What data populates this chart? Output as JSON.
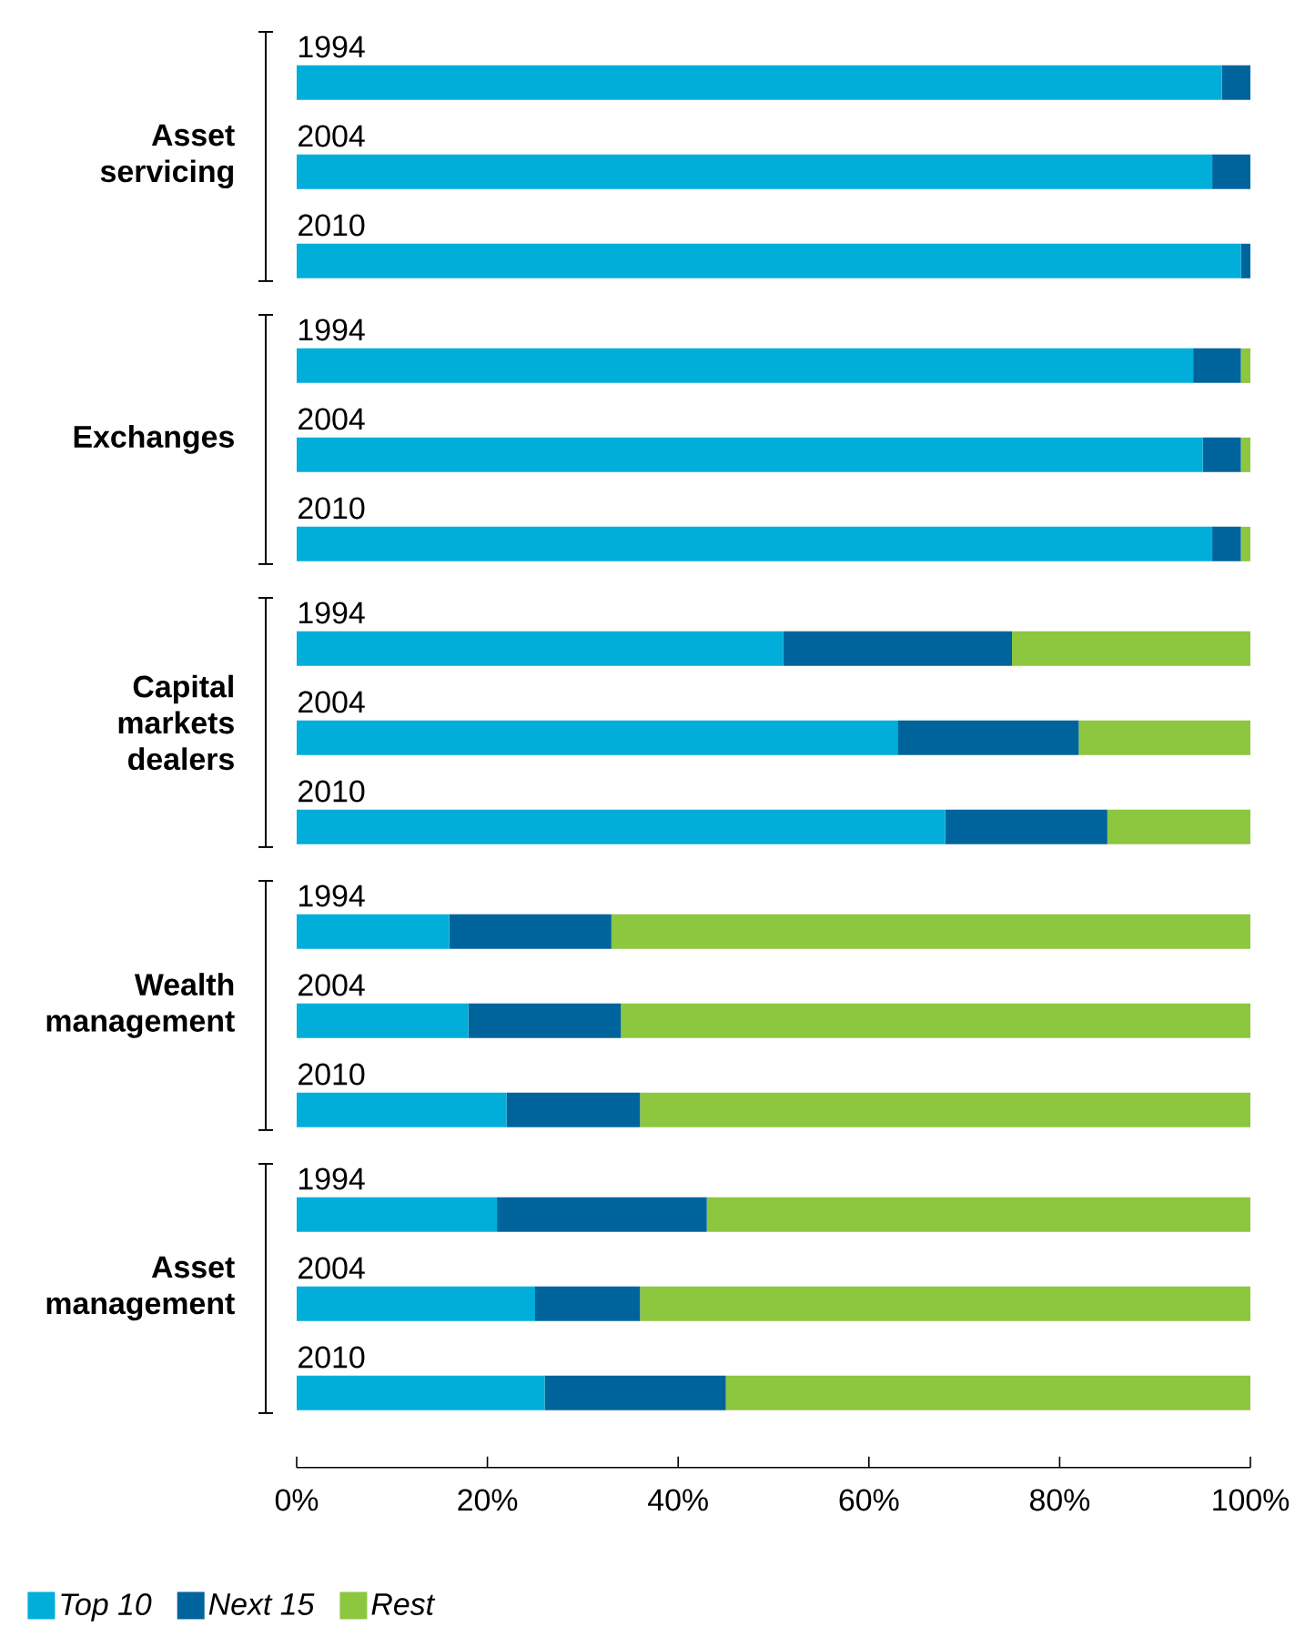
{
  "chart_data": [
    {
      "type": "bar",
      "orientation": "horizontal",
      "stacked": true,
      "ylabel": "Asset servicing",
      "categories": [
        "1994",
        "2004",
        "2010"
      ],
      "xlim": [
        0,
        100
      ],
      "tick_labels": "y",
      "series": [
        {
          "color": "#00aed9",
          "values": [
            97,
            96,
            99
          ]
        },
        {
          "color": "#00649c",
          "values": [
            3,
            4,
            1
          ]
        },
        {
          "color": "#8dc63f",
          "values": [
            0,
            0,
            0
          ]
        }
      ]
    },
    {
      "type": "bar",
      "orientation": "horizontal",
      "stacked": true,
      "ylabel": "Exchanges",
      "categories": [
        "1994",
        "2004",
        "2010"
      ],
      "xlim": [
        0,
        100
      ],
      "tick_labels": "y",
      "series": [
        {
          "color": "#00aed9",
          "values": [
            94,
            95,
            96
          ]
        },
        {
          "color": "#00649c",
          "values": [
            5,
            4,
            3
          ]
        },
        {
          "color": "#8dc63f",
          "values": [
            1,
            1,
            1
          ]
        }
      ]
    },
    {
      "type": "bar",
      "orientation": "horizontal",
      "stacked": true,
      "ylabel": "Capital markets dealers",
      "categories": [
        "1994",
        "2004",
        "2010"
      ],
      "xlim": [
        0,
        100
      ],
      "tick_labels": "y",
      "series": [
        {
          "color": "#00aed9",
          "values": [
            51,
            63,
            68
          ]
        },
        {
          "color": "#00649c",
          "values": [
            24,
            19,
            17
          ]
        },
        {
          "color": "#8dc63f",
          "values": [
            25,
            18,
            15
          ]
        }
      ]
    },
    {
      "type": "bar",
      "orientation": "horizontal",
      "stacked": true,
      "ylabel": "Wealth management",
      "categories": [
        "1994",
        "2004",
        "2010"
      ],
      "xlim": [
        0,
        100
      ],
      "tick_labels": "y",
      "series": [
        {
          "color": "#00aed9",
          "values": [
            16,
            18,
            22
          ]
        },
        {
          "color": "#00649c",
          "values": [
            17,
            16,
            14
          ]
        },
        {
          "color": "#8dc63f",
          "values": [
            67,
            66,
            64
          ]
        }
      ]
    },
    {
      "type": "bar",
      "orientation": "horizontal",
      "stacked": true,
      "ylabel": "Asset management",
      "categories": [
        "1994",
        "2004",
        "2010"
      ],
      "xlim": [
        0,
        100
      ],
      "xticks": [
        {
          "value": 0,
          "label": "0%"
        },
        {
          "value": 20,
          "label": "20%"
        },
        {
          "value": 40,
          "label": "40%"
        },
        {
          "value": 60,
          "label": "60%"
        },
        {
          "value": 80,
          "label": "80%"
        },
        {
          "value": 100,
          "label": "100%"
        }
      ],
      "legend": "bottom",
      "series": [
        {
          "name": "Top 10",
          "color": "#00aed9",
          "values": [
            21,
            25,
            26
          ]
        },
        {
          "name": "Next 15",
          "color": "#00649c",
          "values": [
            22,
            11,
            19
          ]
        },
        {
          "name": "Rest",
          "color": "#8dc63f",
          "values": [
            57,
            64,
            55
          ]
        }
      ]
    }
  ]
}
